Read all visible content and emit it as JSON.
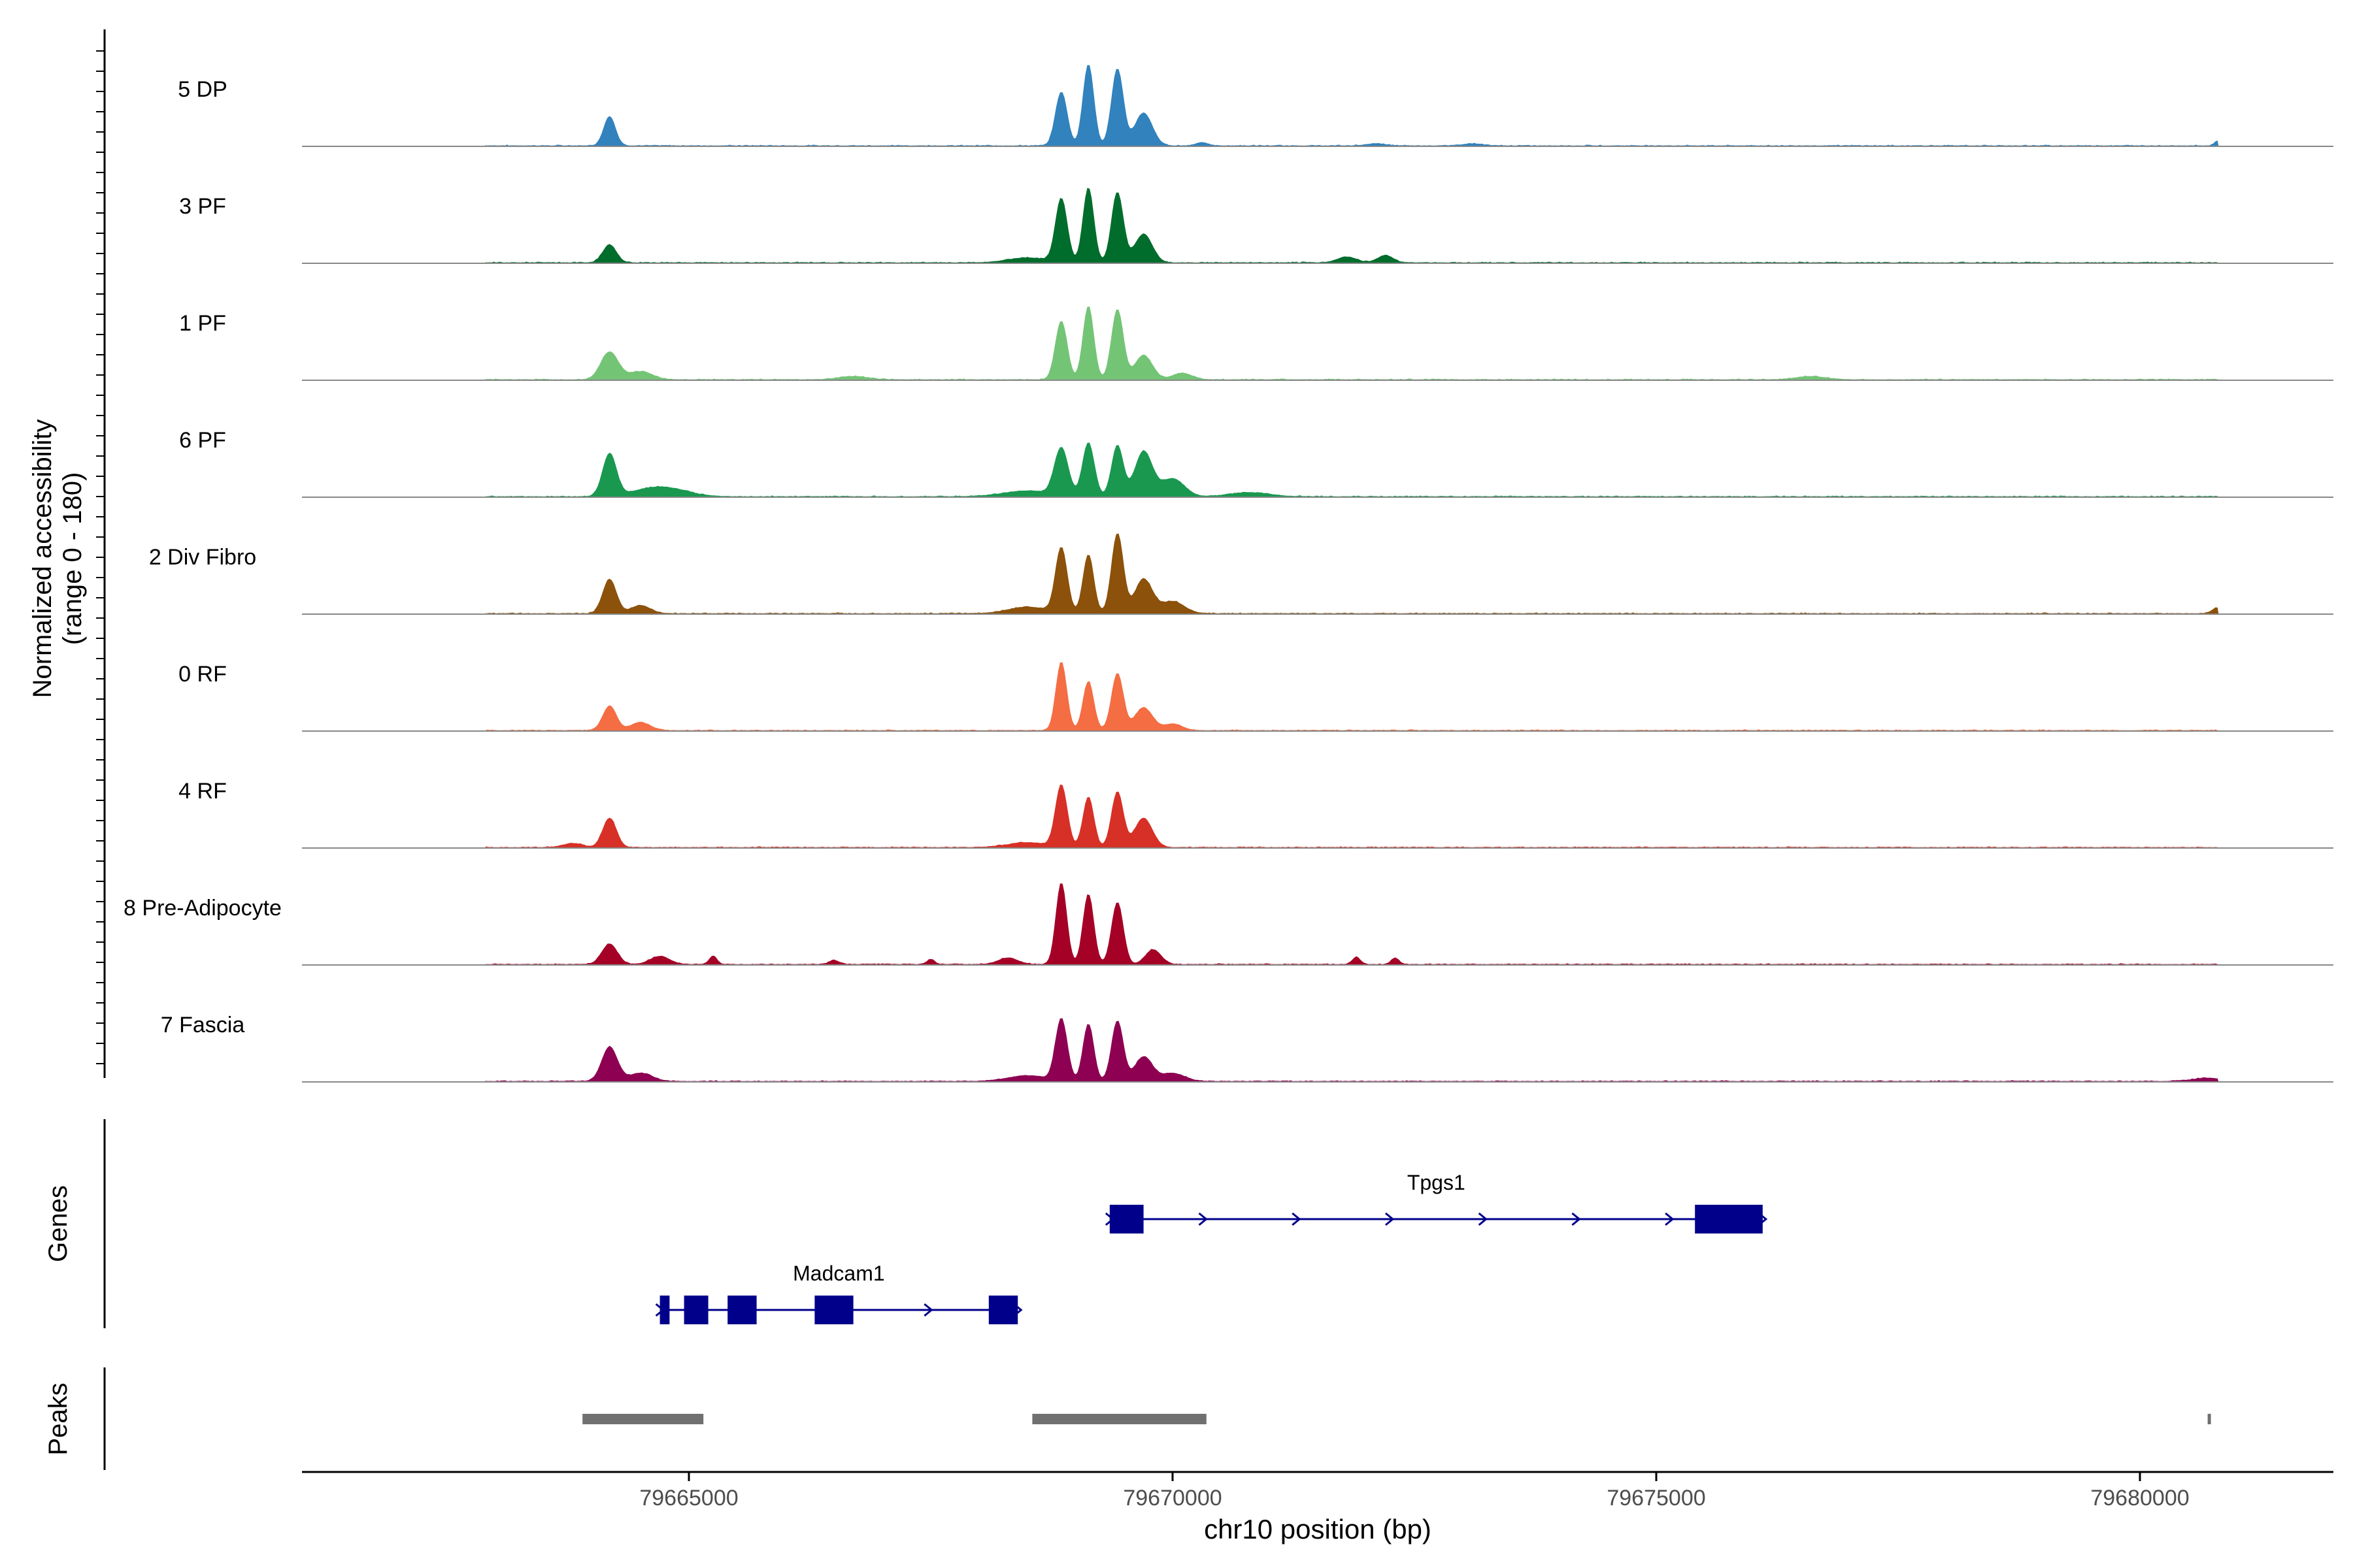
{
  "chart_data": {
    "type": "area",
    "title": "",
    "xlabel": "chr10 position (bp)",
    "ylabel_line1": "Normalized accessibility",
    "ylabel_line2": "(range 0 - 180)",
    "y_range": [
      0,
      180
    ],
    "xlim": [
      79661000,
      79682000
    ],
    "x_ticks": [
      79665000,
      79670000,
      79675000,
      79680000
    ],
    "x_tick_labels": [
      "79665000",
      "79670000",
      "79675000",
      "79680000"
    ],
    "genes_label": "Genes",
    "peaks_label": "Peaks",
    "series": [
      {
        "name": "5 DP",
        "color": "#3182BD",
        "peaks": [
          [
            79664180,
            0.36,
            60
          ],
          [
            79668850,
            0.66,
            60
          ],
          [
            79669130,
            1.0,
            55
          ],
          [
            79669430,
            0.94,
            60
          ],
          [
            79669700,
            0.4,
            90
          ],
          [
            79670300,
            0.04,
            60
          ],
          [
            79672100,
            0.025,
            100
          ],
          [
            79673100,
            0.025,
            100
          ],
          [
            79680800,
            0.06,
            30
          ]
        ]
      },
      {
        "name": "3 PF",
        "color": "#006D2C",
        "peaks": [
          [
            79664180,
            0.22,
            70
          ],
          [
            79668850,
            0.78,
            60
          ],
          [
            79669130,
            0.92,
            55
          ],
          [
            79669430,
            0.86,
            60
          ],
          [
            79669700,
            0.35,
            90
          ],
          [
            79668500,
            0.06,
            200
          ],
          [
            79671800,
            0.07,
            100
          ],
          [
            79672200,
            0.09,
            80
          ]
        ]
      },
      {
        "name": "1 PF",
        "color": "#74C476",
        "peaks": [
          [
            79664180,
            0.34,
            90
          ],
          [
            79664500,
            0.1,
            120
          ],
          [
            79668850,
            0.72,
            60
          ],
          [
            79669130,
            0.9,
            55
          ],
          [
            79669430,
            0.86,
            60
          ],
          [
            79669700,
            0.3,
            90
          ],
          [
            79670100,
            0.08,
            100
          ],
          [
            79666700,
            0.04,
            150
          ],
          [
            79676600,
            0.04,
            150
          ]
        ]
      },
      {
        "name": "6 PF",
        "color": "#1A9850",
        "peaks": [
          [
            79664180,
            0.52,
            70
          ],
          [
            79664700,
            0.12,
            250
          ],
          [
            79668850,
            0.58,
            70
          ],
          [
            79669130,
            0.66,
            60
          ],
          [
            79669430,
            0.62,
            60
          ],
          [
            79669700,
            0.55,
            90
          ],
          [
            79670000,
            0.22,
            120
          ],
          [
            79668500,
            0.07,
            250
          ],
          [
            79670800,
            0.05,
            200
          ]
        ]
      },
      {
        "name": "2 Div Fibro",
        "color": "#8C510A",
        "peaks": [
          [
            79664180,
            0.42,
            70
          ],
          [
            79664500,
            0.1,
            100
          ],
          [
            79668850,
            0.8,
            60
          ],
          [
            79669130,
            0.72,
            55
          ],
          [
            79669430,
            0.98,
            60
          ],
          [
            79669700,
            0.42,
            90
          ],
          [
            79670000,
            0.15,
            120
          ],
          [
            79668500,
            0.08,
            200
          ],
          [
            79680800,
            0.07,
            50
          ]
        ]
      },
      {
        "name": "0 RF",
        "color": "#F46D43",
        "peaks": [
          [
            79664180,
            0.3,
            70
          ],
          [
            79664500,
            0.1,
            100
          ],
          [
            79668850,
            0.84,
            55
          ],
          [
            79669130,
            0.6,
            55
          ],
          [
            79669430,
            0.7,
            60
          ],
          [
            79669700,
            0.28,
            90
          ],
          [
            79670000,
            0.08,
            100
          ]
        ]
      },
      {
        "name": "4 RF",
        "color": "#D73027",
        "peaks": [
          [
            79664180,
            0.36,
            70
          ],
          [
            79663800,
            0.05,
            100
          ],
          [
            79668850,
            0.76,
            60
          ],
          [
            79669130,
            0.62,
            55
          ],
          [
            79669430,
            0.68,
            60
          ],
          [
            79669700,
            0.36,
            90
          ],
          [
            79668500,
            0.06,
            200
          ]
        ]
      },
      {
        "name": "8 Pre-Adipocyte",
        "color": "#A50026",
        "peaks": [
          [
            79664180,
            0.25,
            80
          ],
          [
            79664700,
            0.1,
            100
          ],
          [
            79665250,
            0.1,
            40
          ],
          [
            79668850,
            1.0,
            55
          ],
          [
            79669130,
            0.86,
            55
          ],
          [
            79669430,
            0.76,
            60
          ],
          [
            79669800,
            0.18,
            80
          ],
          [
            79668300,
            0.08,
            100
          ],
          [
            79666500,
            0.05,
            50
          ],
          [
            79667500,
            0.06,
            40
          ],
          [
            79671900,
            0.09,
            40
          ],
          [
            79672300,
            0.08,
            40
          ]
        ]
      },
      {
        "name": "7 Fascia",
        "color": "#8E0152",
        "peaks": [
          [
            79664180,
            0.42,
            80
          ],
          [
            79664500,
            0.1,
            120
          ],
          [
            79668850,
            0.76,
            60
          ],
          [
            79669130,
            0.7,
            55
          ],
          [
            79669430,
            0.74,
            60
          ],
          [
            79669700,
            0.3,
            90
          ],
          [
            79670000,
            0.1,
            120
          ],
          [
            79668500,
            0.07,
            200
          ],
          [
            79680700,
            0.04,
            150
          ]
        ]
      }
    ],
    "genes": [
      {
        "name": "Tpgs1",
        "start": 79669350,
        "end": 79676100,
        "strand": "+",
        "exons": [
          [
            79669350,
            79669700
          ],
          [
            79675400,
            79676100
          ]
        ]
      },
      {
        "name": "Madcam1",
        "start": 79664700,
        "end": 79668400,
        "strand": "+",
        "exons": [
          [
            79664700,
            79664800
          ],
          [
            79664950,
            79665200
          ],
          [
            79665400,
            79665700
          ],
          [
            79666300,
            79666700
          ],
          [
            79668100,
            79668400
          ]
        ]
      }
    ],
    "peaks_regions": [
      [
        79663900,
        79665150
      ],
      [
        79668550,
        79670350
      ],
      [
        79680700,
        79680730
      ]
    ]
  }
}
